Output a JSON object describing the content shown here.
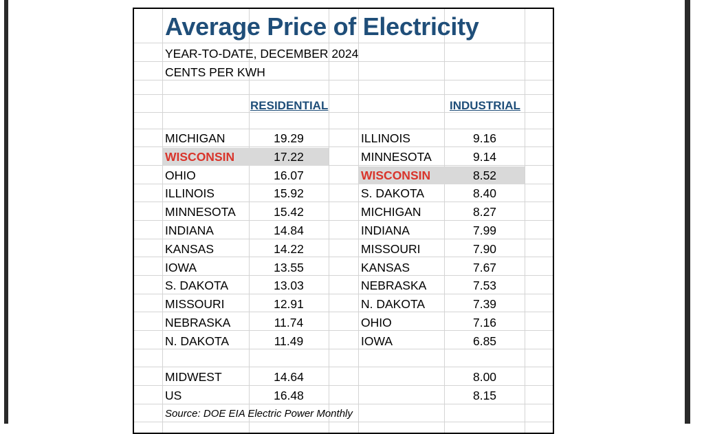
{
  "title": "Average Price of Electricity",
  "subtitle_1": "YEAR-TO-DATE, DECEMBER 2024",
  "subtitle_2": "CENTS PER KWH",
  "residential_header": "RESIDENTIAL",
  "industrial_header": "INDUSTRIAL",
  "residential": [
    {
      "state": "MICHIGAN",
      "value": "19.29"
    },
    {
      "state": "WISCONSIN",
      "value": "17.22"
    },
    {
      "state": "OHIO",
      "value": "16.07"
    },
    {
      "state": "ILLINOIS",
      "value": "15.92"
    },
    {
      "state": "MINNESOTA",
      "value": "15.42"
    },
    {
      "state": "INDIANA",
      "value": "14.84"
    },
    {
      "state": "KANSAS",
      "value": "14.22"
    },
    {
      "state": "IOWA",
      "value": "13.55"
    },
    {
      "state": "S. DAKOTA",
      "value": "13.03"
    },
    {
      "state": "MISSOURI",
      "value": "12.91"
    },
    {
      "state": "NEBRASKA",
      "value": "11.74"
    },
    {
      "state": "N. DAKOTA",
      "value": "11.49"
    }
  ],
  "industrial": [
    {
      "state": "ILLINOIS",
      "value": "9.16"
    },
    {
      "state": "MINNESOTA",
      "value": "9.14"
    },
    {
      "state": "WISCONSIN",
      "value": "8.52"
    },
    {
      "state": "S. DAKOTA",
      "value": "8.40"
    },
    {
      "state": "MICHIGAN",
      "value": "8.27"
    },
    {
      "state": "INDIANA",
      "value": "7.99"
    },
    {
      "state": "MISSOURI",
      "value": "7.90"
    },
    {
      "state": "KANSAS",
      "value": "7.67"
    },
    {
      "state": "NEBRASKA",
      "value": "7.53"
    },
    {
      "state": "N. DAKOTA",
      "value": "7.39"
    },
    {
      "state": "OHIO",
      "value": "7.16"
    },
    {
      "state": "IOWA",
      "value": "6.85"
    }
  ],
  "summary": [
    {
      "label": "MIDWEST",
      "residential": "14.64",
      "industrial": "8.00"
    },
    {
      "label": "US",
      "residential": "16.48",
      "industrial": "8.15"
    }
  ],
  "source": "Source: DOE EIA Electric Power Monthly",
  "colors": {
    "title": "#1f4e79",
    "highlight_text": "#d9342b",
    "highlight_bg": "#d9d9d9"
  }
}
